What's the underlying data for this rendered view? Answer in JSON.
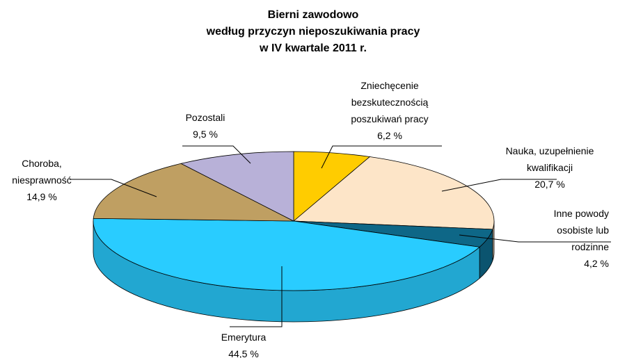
{
  "chart_data": {
    "type": "pie3d",
    "title": "Bierni zawodowo\nwedług przyczyn nieposzukiwania pracy\nw IV kwartale 2011 r.",
    "categories": [
      "Zniechęcenie\nbezskutecznością\nposzukiwań pracy",
      "Nauka, uzupełnienie\nkwalifikacji",
      "Inne powody\nosobiste lub\nrodzinne",
      "Emerytura",
      "Choroba,\nniesprawność",
      "Pozostali"
    ],
    "values": [
      6.2,
      20.7,
      4.2,
      44.5,
      14.9,
      9.5
    ],
    "value_labels": [
      "6,2 %",
      "20,7 %",
      "4,2 %",
      "44,5 %",
      "14,9 %",
      "9,5 %"
    ],
    "colors": [
      "#ffcc00",
      "#fde5c8",
      "#0e6787",
      "#29ccff",
      "#bf9f62",
      "#b8b1d8"
    ]
  }
}
